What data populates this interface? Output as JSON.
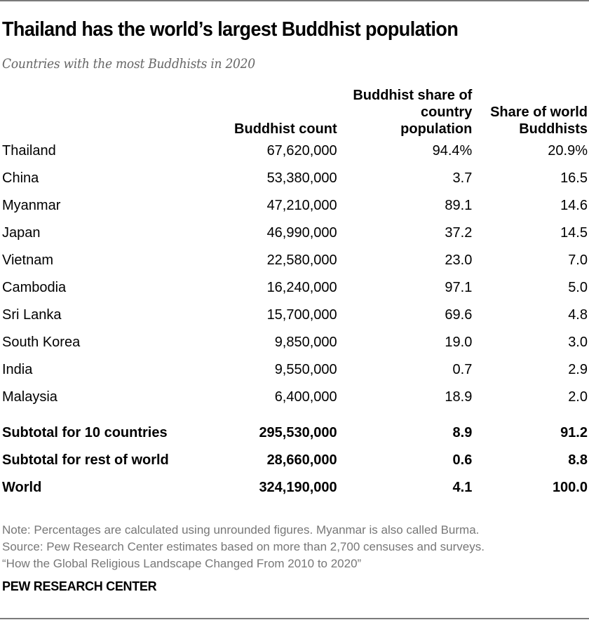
{
  "header": {
    "title": "Thailand has the world’s largest Buddhist population",
    "subtitle": "Countries with the most Buddhists in 2020"
  },
  "table": {
    "columns": [
      "",
      "Buddhist count",
      "Buddhist share of country population",
      "Share of world Buddhists"
    ],
    "header_lines": {
      "col1": "Buddhist count",
      "col2_line1": "Buddhist share of",
      "col2_line2": "country",
      "col2_line3": "population",
      "col3_line1": "Share of world",
      "col3_line2": "Buddhists"
    },
    "rows": [
      {
        "country": "Thailand",
        "count": "67,620,000",
        "share_country": "94.4%",
        "share_world": "20.9%"
      },
      {
        "country": "China",
        "count": "53,380,000",
        "share_country": "3.7",
        "share_world": "16.5"
      },
      {
        "country": "Myanmar",
        "count": "47,210,000",
        "share_country": "89.1",
        "share_world": "14.6"
      },
      {
        "country": "Japan",
        "count": "46,990,000",
        "share_country": "37.2",
        "share_world": "14.5"
      },
      {
        "country": "Vietnam",
        "count": "22,580,000",
        "share_country": "23.0",
        "share_world": "7.0"
      },
      {
        "country": "Cambodia",
        "count": "16,240,000",
        "share_country": "97.1",
        "share_world": "5.0"
      },
      {
        "country": "Sri Lanka",
        "count": "15,700,000",
        "share_country": "69.6",
        "share_world": "4.8"
      },
      {
        "country": "South Korea",
        "count": "9,850,000",
        "share_country": "19.0",
        "share_world": "3.0"
      },
      {
        "country": "India",
        "count": "9,550,000",
        "share_country": "0.7",
        "share_world": "2.9"
      },
      {
        "country": "Malaysia",
        "count": "6,400,000",
        "share_country": "18.9",
        "share_world": "2.0"
      }
    ],
    "totals": [
      {
        "label": "Subtotal for 10 countries",
        "count": "295,530,000",
        "share_country": "8.9",
        "share_world": "91.2"
      },
      {
        "label": "Subtotal for rest of world",
        "count": "28,660,000",
        "share_country": "0.6",
        "share_world": "8.8"
      },
      {
        "label": "World",
        "count": "324,190,000",
        "share_country": "4.1",
        "share_world": "100.0"
      }
    ]
  },
  "footer": {
    "note": "Note: Percentages are calculated using unrounded figures. Myanmar is also called Burma.",
    "source": "Source: Pew Research Center estimates based on more than 2,700 censuses and surveys.",
    "report": "“How the Global Religious Landscape Changed From 2010 to 2020”",
    "brand": "PEW RESEARCH CENTER"
  },
  "chart_data": {
    "type": "table",
    "title": "Thailand has the world’s largest Buddhist population",
    "subtitle": "Countries with the most Buddhists in 2020",
    "columns": [
      "Country",
      "Buddhist count",
      "Buddhist share of country population (%)",
      "Share of world Buddhists (%)"
    ],
    "categories": [
      "Thailand",
      "China",
      "Myanmar",
      "Japan",
      "Vietnam",
      "Cambodia",
      "Sri Lanka",
      "South Korea",
      "India",
      "Malaysia",
      "Subtotal for 10 countries",
      "Subtotal for rest of world",
      "World"
    ],
    "series": [
      {
        "name": "Buddhist count",
        "values": [
          67620000,
          53380000,
          47210000,
          46990000,
          22580000,
          16240000,
          15700000,
          9850000,
          9550000,
          6400000,
          295530000,
          28660000,
          324190000
        ]
      },
      {
        "name": "Buddhist share of country population",
        "values": [
          94.4,
          3.7,
          89.1,
          37.2,
          23.0,
          97.1,
          69.6,
          19.0,
          0.7,
          18.9,
          8.9,
          0.6,
          4.1
        ]
      },
      {
        "name": "Share of world Buddhists",
        "values": [
          20.9,
          16.5,
          14.6,
          14.5,
          7.0,
          5.0,
          4.8,
          3.0,
          2.9,
          2.0,
          91.2,
          8.8,
          100.0
        ]
      }
    ],
    "annotations": [
      "Note: Percentages are calculated using unrounded figures. Myanmar is also called Burma.",
      "Source: Pew Research Center estimates based on more than 2,700 censuses and surveys.",
      "“How the Global Religious Landscape Changed From 2010 to 2020”"
    ]
  }
}
